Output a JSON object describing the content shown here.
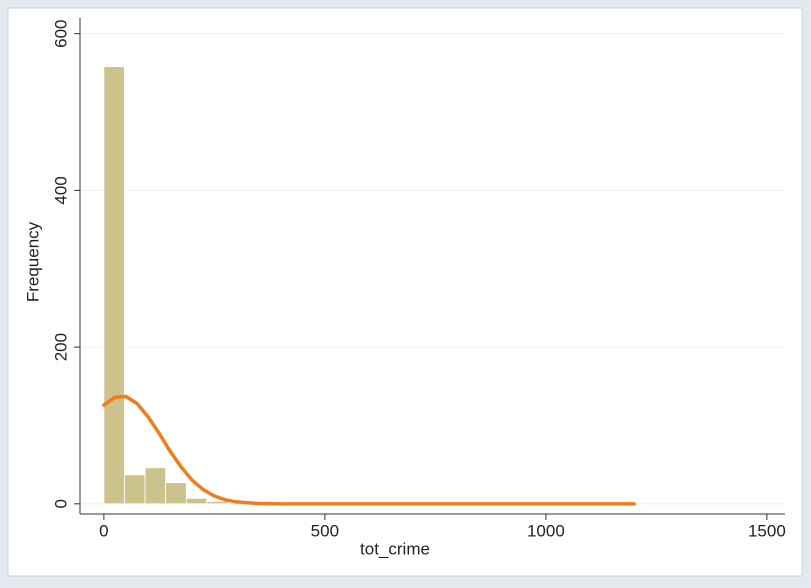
{
  "chart_data": {
    "type": "histogram",
    "xlabel": "tot_crime",
    "ylabel": "Frequency",
    "bins": [
      0,
      46.6,
      93.2,
      139.8,
      186.4,
      233,
      279.6,
      326.2,
      372.8,
      419.4,
      466,
      512.6,
      559.2,
      605.8,
      652.4,
      699,
      745.6,
      792.2,
      838.8,
      885.4,
      932,
      978.6,
      1025.2,
      1071.8,
      1118.4,
      1165,
      1211.6
    ],
    "counts": [
      558,
      37,
      46,
      27,
      7,
      3,
      1,
      1,
      0,
      0,
      0,
      0,
      0,
      0,
      0,
      0,
      0,
      0,
      0,
      0,
      0,
      0,
      0,
      0,
      0,
      1
    ],
    "color": "#cbc28c",
    "overlay": {
      "type": "line",
      "color": "#f07c1c",
      "x": [
        0,
        25,
        50,
        75,
        100,
        125,
        150,
        175,
        200,
        225,
        250,
        275,
        300,
        350,
        400,
        1200
      ],
      "values": [
        126,
        136,
        137,
        128,
        111,
        90,
        67,
        47,
        30,
        18,
        10,
        5,
        2.4,
        0.4,
        0,
        0
      ]
    },
    "xlim": [
      -54,
      1541
    ],
    "ylim": [
      -13,
      620
    ],
    "xticks": [
      0,
      500,
      1000,
      1500
    ],
    "yticks": [
      0,
      200,
      400,
      600
    ],
    "grid": true
  }
}
